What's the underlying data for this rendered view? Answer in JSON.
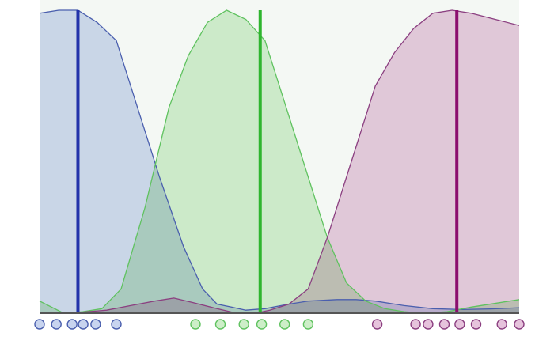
{
  "chart_data": {
    "type": "area",
    "description_free": true,
    "xlim": [
      0,
      100
    ],
    "ylim": [
      0,
      1
    ],
    "background": "#f4f8f4",
    "series": [
      {
        "name": "blue",
        "fill": "#c8d4ef",
        "stroke": "#4a5fae",
        "center_color": "#2233aa",
        "points": [
          [
            0,
            0.99
          ],
          [
            4,
            1.0
          ],
          [
            8,
            1.0
          ],
          [
            12,
            0.96
          ],
          [
            16,
            0.9
          ],
          [
            20,
            0.7
          ],
          [
            25,
            0.45
          ],
          [
            30,
            0.22
          ],
          [
            34,
            0.08
          ],
          [
            37,
            0.03
          ],
          [
            40,
            0.02
          ],
          [
            43,
            0.01
          ],
          [
            47,
            0.015
          ],
          [
            52,
            0.03
          ],
          [
            56,
            0.04
          ],
          [
            62,
            0.045
          ],
          [
            66,
            0.045
          ],
          [
            70,
            0.04
          ],
          [
            76,
            0.025
          ],
          [
            82,
            0.015
          ],
          [
            88,
            0.012
          ],
          [
            94,
            0.014
          ],
          [
            100,
            0.018
          ]
        ],
        "center_x": 8,
        "samples": [
          0,
          3.5,
          6.8,
          9.1,
          11.7,
          16
        ]
      },
      {
        "name": "green",
        "fill": "#cdeec8",
        "stroke": "#5fc25f",
        "center_color": "#2eb52e",
        "points": [
          [
            0,
            0.04
          ],
          [
            5,
            0.0
          ],
          [
            9,
            0.005
          ],
          [
            13,
            0.015
          ],
          [
            17,
            0.08
          ],
          [
            22,
            0.35
          ],
          [
            27,
            0.68
          ],
          [
            31,
            0.85
          ],
          [
            35,
            0.96
          ],
          [
            39,
            1.0
          ],
          [
            43,
            0.97
          ],
          [
            47,
            0.9
          ],
          [
            51,
            0.7
          ],
          [
            56,
            0.45
          ],
          [
            60,
            0.25
          ],
          [
            64,
            0.1
          ],
          [
            68,
            0.04
          ],
          [
            72,
            0.015
          ],
          [
            76,
            0.005
          ],
          [
            80,
            0.0
          ],
          [
            85,
            0.005
          ],
          [
            90,
            0.02
          ],
          [
            100,
            0.045
          ]
        ],
        "center_x": 46,
        "samples": [
          32.5,
          37.7,
          42.6,
          46.3,
          51.1,
          56
        ]
      },
      {
        "name": "magenta",
        "fill": "#e6c3dc",
        "stroke": "#8b3f80",
        "center_color": "#8b0e6e",
        "points": [
          [
            0,
            0.0
          ],
          [
            8,
            0.002
          ],
          [
            14,
            0.01
          ],
          [
            19,
            0.025
          ],
          [
            24,
            0.04
          ],
          [
            28,
            0.05
          ],
          [
            32,
            0.035
          ],
          [
            37,
            0.015
          ],
          [
            41,
            0.0
          ],
          [
            45,
            0.0
          ],
          [
            48,
            0.01
          ],
          [
            52,
            0.03
          ],
          [
            56,
            0.08
          ],
          [
            60,
            0.25
          ],
          [
            65,
            0.5
          ],
          [
            70,
            0.75
          ],
          [
            74,
            0.86
          ],
          [
            78,
            0.94
          ],
          [
            82,
            0.99
          ],
          [
            86,
            1.0
          ],
          [
            90,
            0.99
          ],
          [
            95,
            0.97
          ],
          [
            100,
            0.95
          ]
        ],
        "center_x": 87,
        "samples": [
          70.4,
          78.4,
          81,
          84.4,
          87.6,
          91,
          96.4,
          100
        ]
      }
    ]
  }
}
